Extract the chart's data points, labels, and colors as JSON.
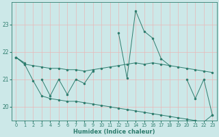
{
  "x": [
    0,
    1,
    2,
    3,
    4,
    5,
    6,
    7,
    8,
    9,
    10,
    11,
    12,
    13,
    14,
    15,
    16,
    17,
    18,
    19,
    20,
    21,
    22,
    23
  ],
  "y_spiky": [
    21.8,
    21.6,
    null,
    null,
    null,
    null,
    null,
    null,
    null,
    null,
    null,
    null,
    22.7,
    21.05,
    23.5,
    22.75,
    22.5,
    21.75,
    21.5,
    null,
    21.0,
    20.3,
    21.0,
    19.7
  ],
  "y_upper_trend": [
    21.8,
    21.55,
    21.5,
    21.45,
    21.4,
    21.4,
    21.35,
    21.35,
    21.3,
    21.35,
    21.4,
    21.45,
    21.5,
    21.55,
    21.6,
    21.55,
    21.6,
    21.55,
    21.5,
    21.45,
    21.4,
    21.35,
    21.3,
    21.25
  ],
  "y_zigzag": [
    null,
    null,
    null,
    21.0,
    20.4,
    21.0,
    20.45,
    21.0,
    20.85,
    21.3,
    null,
    null,
    null,
    null,
    null,
    null,
    null,
    null,
    null,
    null,
    null,
    null,
    null,
    null
  ],
  "y_lower": [
    21.8,
    21.55,
    20.95,
    20.4,
    20.3,
    20.25,
    20.2,
    20.2,
    20.15,
    20.1,
    20.05,
    20.0,
    19.95,
    19.9,
    19.85,
    19.8,
    19.75,
    19.7,
    19.65,
    19.6,
    19.55,
    19.5,
    19.45,
    19.7
  ],
  "bg_color": "#cce8e8",
  "line_color": "#2e7d6e",
  "grid_color": "#e8e8e8",
  "ylim": [
    19.5,
    23.8
  ],
  "xlim": [
    -0.5,
    23.5
  ],
  "yticks": [
    20,
    21,
    22,
    23
  ],
  "xticks": [
    0,
    1,
    2,
    3,
    4,
    5,
    6,
    7,
    8,
    9,
    10,
    11,
    12,
    13,
    14,
    15,
    16,
    17,
    18,
    19,
    20,
    21,
    22,
    23
  ],
  "xlabel": "Humidex (Indice chaleur)",
  "figsize": [
    3.2,
    2.0
  ],
  "dpi": 100
}
